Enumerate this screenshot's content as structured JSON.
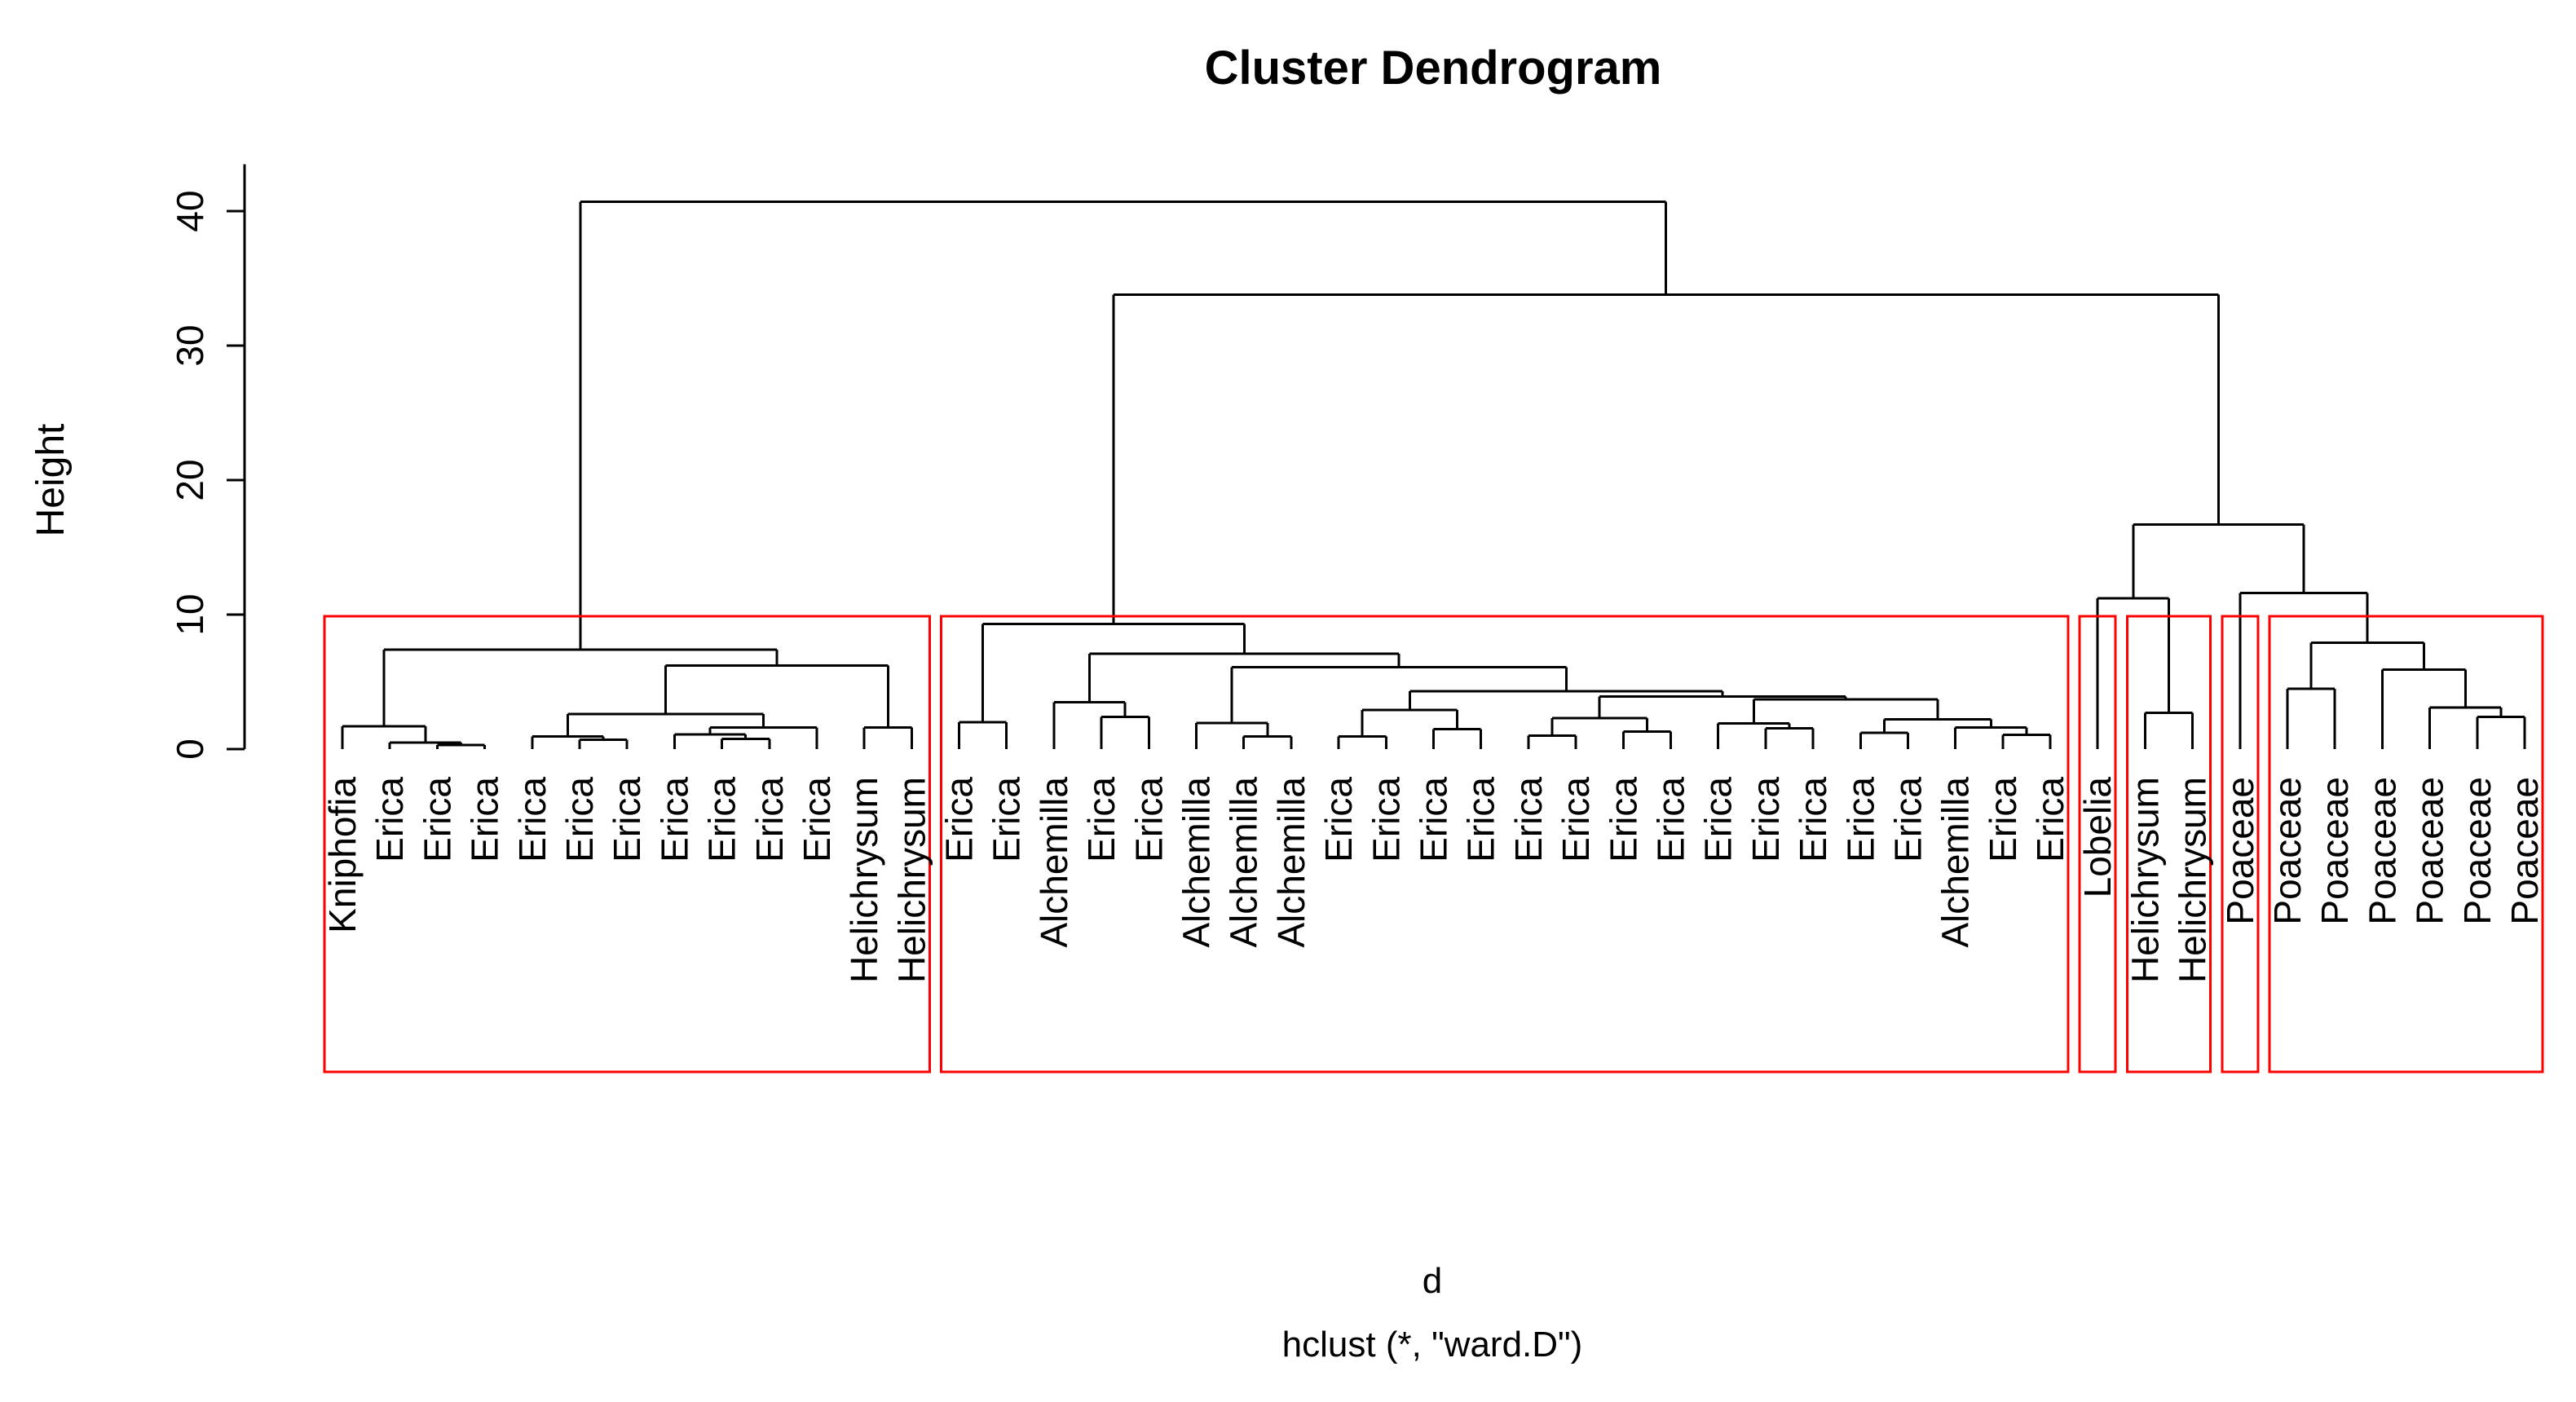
{
  "chart_data": {
    "type": "dendrogram",
    "title": "Cluster Dendrogram",
    "ylabel": "Height",
    "xlabel_line1": "d",
    "xlabel_line2": "hclust (*, \"ward.D\")",
    "grid": false,
    "y_axis": {
      "ticks": [
        0,
        10,
        20,
        30,
        40
      ],
      "range": [
        0,
        43.5
      ]
    },
    "line_color": "#000000",
    "cluster_box_color": "#ff0000",
    "cluster_cut_height": 9.9,
    "leaves": [
      "Kniphofia",
      "Erica",
      "Erica",
      "Erica",
      "Erica",
      "Erica",
      "Erica",
      "Erica",
      "Erica",
      "Erica",
      "Erica",
      "Helichrysum",
      "Helichrysum",
      "Erica",
      "Erica",
      "Alchemilla",
      "Erica",
      "Erica",
      "Alchemilla",
      "Alchemilla",
      "Alchemilla",
      "Erica",
      "Erica",
      "Erica",
      "Erica",
      "Erica",
      "Erica",
      "Erica",
      "Erica",
      "Erica",
      "Erica",
      "Erica",
      "Erica",
      "Erica",
      "Alchemilla",
      "Erica",
      "Erica",
      "Lobelia",
      "Helichrysum",
      "Helichrysum",
      "Poaceae",
      "Poaceae",
      "Poaceae",
      "Poaceae",
      "Poaceae",
      "Poaceae",
      "Poaceae"
    ],
    "cluster_boxes": [
      {
        "from": 1,
        "to": 13
      },
      {
        "from": 14,
        "to": 37
      },
      {
        "from": 38,
        "to": 38
      },
      {
        "from": 39,
        "to": 40
      },
      {
        "from": 41,
        "to": 41
      },
      {
        "from": 42,
        "to": 47
      }
    ],
    "tree": {
      "h": 40.7,
      "c": [
        {
          "h": 7.4,
          "c": [
            {
              "h": 1.7,
              "c": [
                {
                  "l": 1
                },
                {
                  "h": 0.5,
                  "c": [
                    {
                      "l": 2
                    },
                    {
                      "h": 0.3,
                      "c": [
                        {
                          "l": 3
                        },
                        {
                          "l": 4
                        }
                      ]
                    }
                  ]
                }
              ]
            },
            {
              "h": 6.2,
              "c": [
                {
                  "h": 2.6,
                  "c": [
                    {
                      "h": 0.95,
                      "c": [
                        {
                          "l": 5
                        },
                        {
                          "h": 0.7,
                          "c": [
                            {
                              "l": 6
                            },
                            {
                              "l": 7
                            }
                          ]
                        }
                      ]
                    },
                    {
                      "h": 1.6,
                      "c": [
                        {
                          "h": 1.1,
                          "c": [
                            {
                              "l": 8
                            },
                            {
                              "h": 0.75,
                              "c": [
                                {
                                  "l": 9
                                },
                                {
                                  "l": 10
                                }
                              ]
                            }
                          ]
                        },
                        {
                          "l": 11
                        }
                      ]
                    }
                  ]
                },
                {
                  "h": 1.6,
                  "c": [
                    {
                      "l": 12
                    },
                    {
                      "l": 13
                    }
                  ]
                }
              ]
            }
          ]
        },
        {
          "h": 33.8,
          "c": [
            {
              "h": 9.3,
              "c": [
                {
                  "h": 2.0,
                  "c": [
                    {
                      "l": 14
                    },
                    {
                      "l": 15
                    }
                  ]
                },
                {
                  "h": 7.1,
                  "c": [
                    {
                      "h": 3.5,
                      "c": [
                        {
                          "l": 16
                        },
                        {
                          "h": 2.4,
                          "c": [
                            {
                              "l": 17
                            },
                            {
                              "l": 18
                            }
                          ]
                        }
                      ]
                    },
                    {
                      "h": 6.1,
                      "c": [
                        {
                          "h": 1.95,
                          "c": [
                            {
                              "l": 19
                            },
                            {
                              "h": 0.95,
                              "c": [
                                {
                                  "l": 20
                                },
                                {
                                  "l": 21
                                }
                              ]
                            }
                          ]
                        },
                        {
                          "h": 4.3,
                          "c": [
                            {
                              "h": 2.9,
                              "c": [
                                {
                                  "h": 0.95,
                                  "c": [
                                    {
                                      "l": 22
                                    },
                                    {
                                      "l": 23
                                    }
                                  ]
                                },
                                {
                                  "h": 1.5,
                                  "c": [
                                    {
                                      "l": 24
                                    },
                                    {
                                      "l": 25
                                    }
                                  ]
                                }
                              ]
                            },
                            {
                              "h": 3.9,
                              "c": [
                                {
                                  "h": 2.3,
                                  "c": [
                                    {
                                      "h": 1.0,
                                      "c": [
                                        {
                                          "l": 26
                                        },
                                        {
                                          "l": 27
                                        }
                                      ]
                                    },
                                    {
                                      "h": 1.3,
                                      "c": [
                                        {
                                          "l": 28
                                        },
                                        {
                                          "l": 29
                                        }
                                      ]
                                    }
                                  ]
                                },
                                {
                                  "h": 3.7,
                                  "c": [
                                    {
                                      "h": 1.9,
                                      "c": [
                                        {
                                          "l": 30
                                        },
                                        {
                                          "h": 1.55,
                                          "c": [
                                            {
                                              "l": 31
                                            },
                                            {
                                              "l": 32
                                            }
                                          ]
                                        }
                                      ]
                                    },
                                    {
                                      "h": 2.2,
                                      "c": [
                                        {
                                          "h": 1.2,
                                          "c": [
                                            {
                                              "l": 33
                                            },
                                            {
                                              "l": 34
                                            }
                                          ]
                                        },
                                        {
                                          "h": 1.6,
                                          "c": [
                                            {
                                              "l": 35
                                            },
                                            {
                                              "h": 1.05,
                                              "c": [
                                                {
                                                  "l": 36
                                                },
                                                {
                                                  "l": 37
                                                }
                                              ]
                                            }
                                          ]
                                        }
                                      ]
                                    }
                                  ]
                                }
                              ]
                            }
                          ]
                        }
                      ]
                    }
                  ]
                }
              ]
            },
            {
              "h": 16.7,
              "c": [
                {
                  "h": 11.2,
                  "c": [
                    {
                      "l": 38
                    },
                    {
                      "h": 2.7,
                      "c": [
                        {
                          "l": 39
                        },
                        {
                          "l": 40
                        }
                      ]
                    }
                  ]
                },
                {
                  "h": 11.6,
                  "c": [
                    {
                      "l": 41
                    },
                    {
                      "h": 7.9,
                      "c": [
                        {
                          "h": 4.5,
                          "c": [
                            {
                              "l": 42
                            },
                            {
                              "l": 43
                            }
                          ]
                        },
                        {
                          "h": 5.9,
                          "c": [
                            {
                              "l": 44
                            },
                            {
                              "h": 3.1,
                              "c": [
                                {
                                  "l": 45
                                },
                                {
                                  "h": 2.4,
                                  "c": [
                                    {
                                      "l": 46
                                    },
                                    {
                                      "l": 47
                                    }
                                  ]
                                }
                              ]
                            }
                          ]
                        }
                      ]
                    }
                  ]
                }
              ]
            }
          ]
        }
      ]
    }
  }
}
